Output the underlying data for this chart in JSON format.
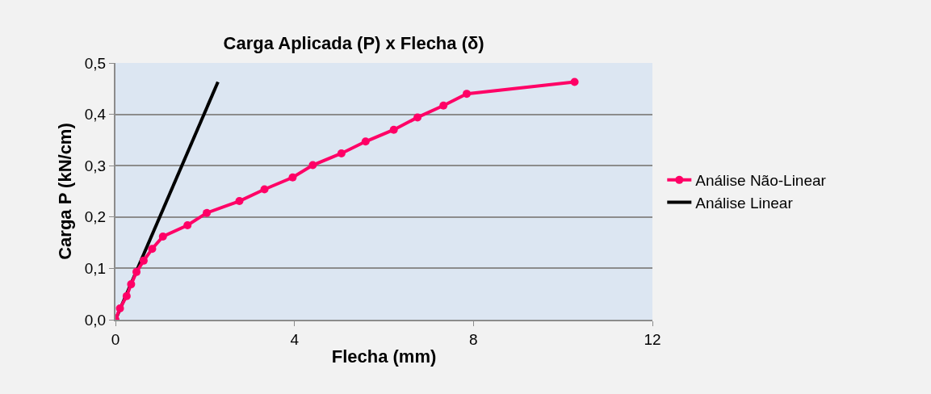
{
  "chart_data": {
    "type": "line",
    "title": "Carga Aplicada (P) x Flecha (δ)",
    "xlabel": "Flecha (mm)",
    "ylabel": "Carga P (kN/cm)",
    "series": [
      {
        "name": "Análise Não-Linear",
        "color": "#ff0066",
        "marker": "circle",
        "x": [
          0,
          0.1,
          0.25,
          0.35,
          0.47,
          0.63,
          0.82,
          1.06,
          1.61,
          2.04,
          2.77,
          3.33,
          3.96,
          4.41,
          5.05,
          5.59,
          6.22,
          6.75,
          7.33,
          7.85,
          10.26
        ],
        "values": [
          0,
          0.022,
          0.046,
          0.069,
          0.093,
          0.115,
          0.138,
          0.162,
          0.184,
          0.208,
          0.231,
          0.254,
          0.277,
          0.301,
          0.324,
          0.347,
          0.37,
          0.394,
          0.417,
          0.44,
          0.463
        ]
      },
      {
        "name": "Análise Linear",
        "color": "#000000",
        "marker": "none",
        "x": [
          0,
          2.29
        ],
        "values": [
          0,
          0.463
        ]
      }
    ],
    "xlim": [
      0,
      12
    ],
    "xticks": [
      0,
      4,
      8,
      12
    ],
    "ylim": [
      0,
      0.5
    ],
    "yticks": [
      {
        "value": 0,
        "label": "0,0"
      },
      {
        "value": 0.1,
        "label": "0,1"
      },
      {
        "value": 0.2,
        "label": "0,2"
      },
      {
        "value": 0.3,
        "label": "0,3"
      },
      {
        "value": 0.4,
        "label": "0,4"
      },
      {
        "value": 0.5,
        "label": "0,5"
      }
    ],
    "grid": "y",
    "legend": "right"
  }
}
